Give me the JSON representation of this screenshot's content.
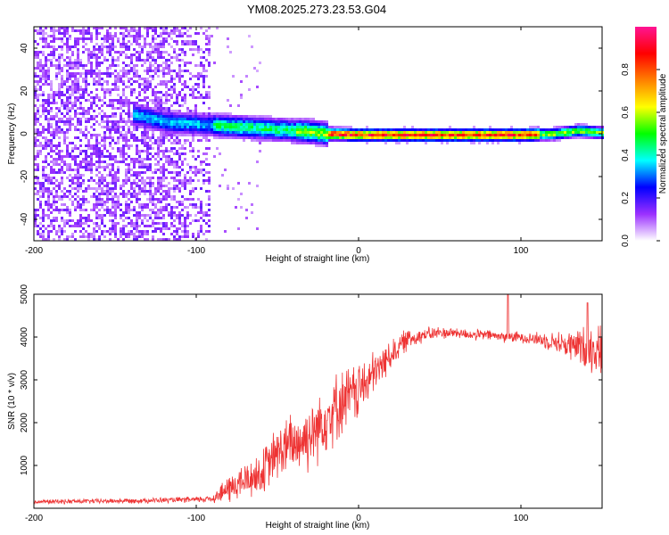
{
  "title": "YM08.2025.273.23.53.G04",
  "chart_data": [
    {
      "type": "heatmap",
      "name": "spectrogram",
      "xlabel": "Height of straight line (km)",
      "ylabel": "Frequency (Hz)",
      "xlim": [
        -200,
        150
      ],
      "ylim": [
        -50,
        50
      ],
      "xticks": [
        -200,
        -100,
        0,
        100
      ],
      "yticks": [
        -40,
        -20,
        0,
        20,
        40
      ],
      "colorbar": {
        "label": "Normalized spectral amplitude",
        "range": [
          0,
          1
        ],
        "ticks": [
          0,
          0.2,
          0.4,
          0.6,
          0.8
        ],
        "tick_labels": [
          "0.0",
          "0.2",
          "0.4",
          "0.6",
          "0.8"
        ],
        "colormap": [
          "#ffffff",
          "#9b30ff",
          "#0000ff",
          "#00ffff",
          "#00ff00",
          "#ffff00",
          "#ff8000",
          "#ff0000",
          "#ff1493"
        ]
      },
      "ridge": {
        "description": "dominant frequency vs height",
        "points": [
          [
            -135,
            9
          ],
          [
            -120,
            6
          ],
          [
            -100,
            5
          ],
          [
            -80,
            4
          ],
          [
            -60,
            3
          ],
          [
            -40,
            2
          ],
          [
            -30,
            1.5
          ],
          [
            -20,
            0.5
          ],
          [
            0,
            0
          ],
          [
            60,
            0
          ],
          [
            100,
            0
          ],
          [
            120,
            0.5
          ],
          [
            135,
            2
          ],
          [
            150,
            1
          ]
        ],
        "noise_floor_end_km": -92
      }
    },
    {
      "type": "line",
      "name": "snr",
      "xlabel": "Height of straight line (km)",
      "ylabel": "SNR (10 * v/v)",
      "xlim": [
        -200,
        150
      ],
      "ylim": [
        0,
        5000
      ],
      "xticks": [
        -200,
        -100,
        0,
        100
      ],
      "yticks": [
        1000,
        2000,
        3000,
        4000,
        5000
      ],
      "color": "#ee3333",
      "trend": [
        [
          -200,
          150
        ],
        [
          -150,
          170
        ],
        [
          -100,
          200
        ],
        [
          -90,
          230
        ],
        [
          -80,
          450
        ],
        [
          -70,
          650
        ],
        [
          -60,
          800
        ],
        [
          -50,
          1300
        ],
        [
          -40,
          1500
        ],
        [
          -30,
          1700
        ],
        [
          -20,
          2150
        ],
        [
          -10,
          2500
        ],
        [
          0,
          2750
        ],
        [
          10,
          3150
        ],
        [
          20,
          3600
        ],
        [
          30,
          3950
        ],
        [
          40,
          4050
        ],
        [
          50,
          4100
        ],
        [
          60,
          4100
        ],
        [
          70,
          4050
        ],
        [
          80,
          4050
        ],
        [
          90,
          4000
        ],
        [
          100,
          4000
        ],
        [
          110,
          3950
        ],
        [
          120,
          3900
        ],
        [
          130,
          3800
        ],
        [
          140,
          3750
        ],
        [
          150,
          3700
        ]
      ],
      "spread": [
        [
          -200,
          60
        ],
        [
          -100,
          80
        ],
        [
          -90,
          120
        ],
        [
          -80,
          400
        ],
        [
          -60,
          600
        ],
        [
          -40,
          900
        ],
        [
          -20,
          1000
        ],
        [
          0,
          800
        ],
        [
          20,
          400
        ],
        [
          40,
          200
        ],
        [
          60,
          150
        ],
        [
          100,
          150
        ],
        [
          120,
          250
        ],
        [
          140,
          600
        ],
        [
          150,
          700
        ]
      ],
      "peaks": [
        [
          92,
          5000
        ],
        [
          141,
          4800
        ]
      ]
    }
  ]
}
